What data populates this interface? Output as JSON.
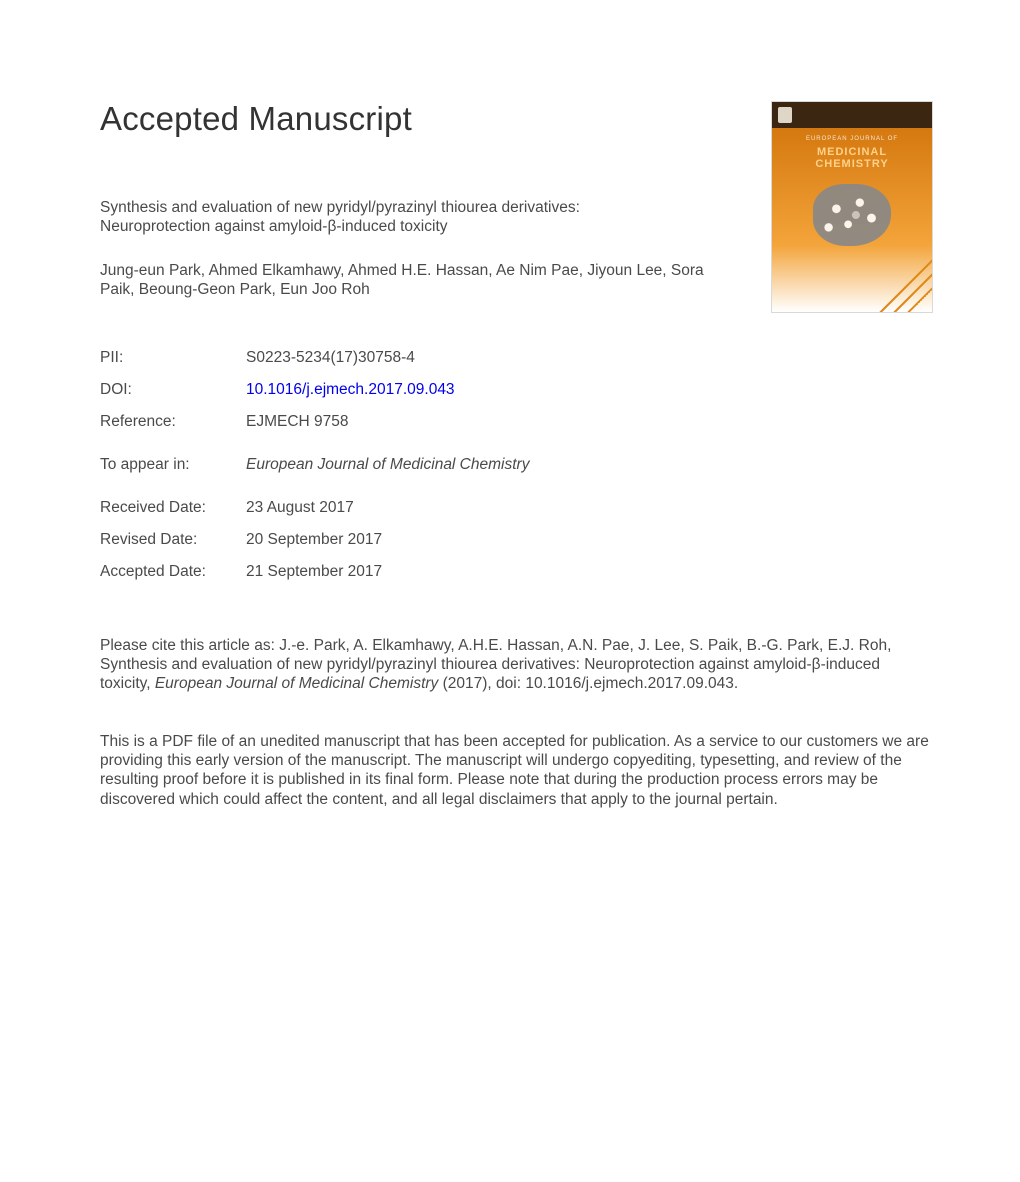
{
  "heading": "Accepted Manuscript",
  "article": {
    "title_line1": "Synthesis and evaluation of new pyridyl/pyrazinyl thiourea derivatives:",
    "title_line2": "Neuroprotection against amyloid-β-induced toxicity",
    "authors": "Jung-eun Park, Ahmed Elkamhawy, Ahmed H.E. Hassan, Ae Nim Pae, Jiyoun Lee, Sora Paik, Beoung-Geon Park, Eun Joo Roh"
  },
  "meta": {
    "pii_label": "PII:",
    "pii": "S0223-5234(17)30758-4",
    "doi_label": "DOI:",
    "doi": "10.1016/j.ejmech.2017.09.043",
    "reference_label": "Reference:",
    "reference": "EJMECH 9758",
    "to_appear_label": "To appear in:",
    "to_appear": "European Journal of Medicinal Chemistry",
    "received_label": "Received Date:",
    "received": "23 August 2017",
    "revised_label": "Revised Date:",
    "revised": "20 September 2017",
    "accepted_label": "Accepted Date:",
    "accepted": "21 September 2017"
  },
  "cite": {
    "prefix": "Please cite this article as: J.-e. Park, A. Elkamhawy, A.H.E. Hassan, A.N. Pae, J. Lee, S. Paik, B.-G. Park, E.J. Roh, Synthesis and evaluation of new pyridyl/pyrazinyl thiourea derivatives: Neuroprotection against amyloid-β-induced toxicity, ",
    "journal_italic": "European Journal of Medicinal Chemistry",
    "suffix": " (2017), doi: 10.1016/j.ejmech.2017.09.043."
  },
  "disclaimer": "This is a PDF file of an unedited manuscript that has been accepted for publication. As a service to our customers we are providing this early version of the manuscript. The manuscript will undergo copyediting, typesetting, and review of the resulting proof before it is published in its final form. Please note that during the production process errors may be discovered which could affect the content, and all legal disclaimers that apply to the journal pertain.",
  "cover": {
    "journal_super": "EUROPEAN JOURNAL OF",
    "journal_main": "MEDICINAL\nCHEMISTRY",
    "colors": {
      "top_bar": "#3b2612",
      "gradient_top": "#d4780f",
      "gradient_mid": "#f3a43a",
      "gradient_bottom": "#ffffff",
      "title_color": "#ffd18a"
    }
  },
  "style": {
    "background_color": "#ffffff",
    "text_color": "#4a4a4a",
    "heading_color": "#333333",
    "link_color": "#0000ee",
    "heading_fontsize": 33,
    "body_fontsize": 15.5,
    "font_family": "Arial, Helvetica, sans-serif"
  }
}
